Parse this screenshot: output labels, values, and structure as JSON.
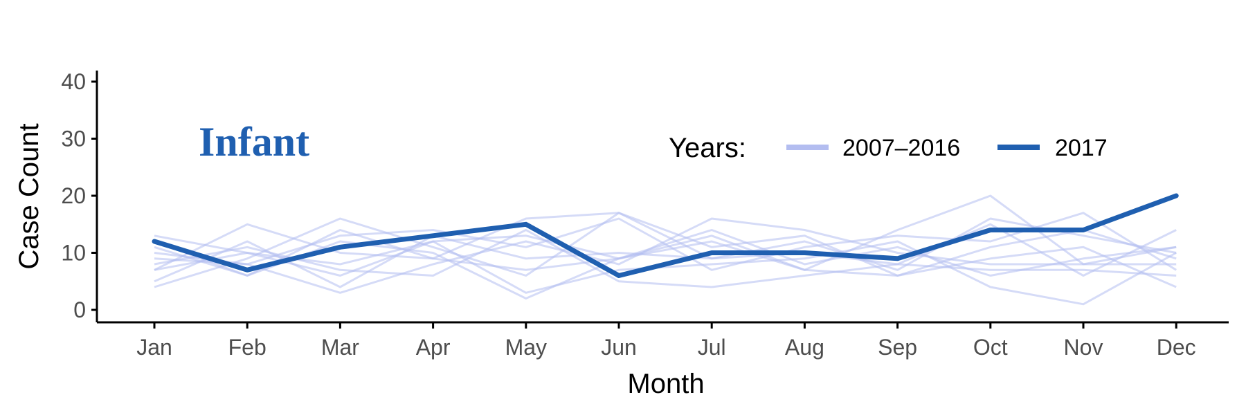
{
  "colors": {
    "history": "#b3bdf0",
    "current": "#1f5fb0",
    "axis": "#000000",
    "tick_text": "#4d4d4d"
  },
  "chart_data": {
    "type": "line",
    "panel_label": "Infant",
    "xlabel": "Month",
    "ylabel": "Case Count",
    "categories": [
      "Jan",
      "Feb",
      "Mar",
      "Apr",
      "May",
      "Jun",
      "Jul",
      "Aug",
      "Sep",
      "Oct",
      "Nov",
      "Dec"
    ],
    "ylim": [
      -2,
      40
    ],
    "yticks": [
      0,
      10,
      20,
      30,
      40
    ],
    "grid": false,
    "legend": {
      "title": "Years:",
      "placement": "top-right-inside",
      "entries": [
        {
          "label": "2007–2016",
          "color": "#b3bdf0"
        },
        {
          "label": "2017",
          "color": "#1f5fb0"
        }
      ]
    },
    "series": [
      {
        "name": "2017",
        "values": [
          12,
          7,
          11,
          13,
          15,
          6,
          10,
          10,
          9,
          14,
          14,
          20
        ]
      }
    ],
    "history_series": [
      {
        "values": [
          13,
          10,
          8,
          12,
          13,
          9,
          13,
          7,
          14,
          20,
          8,
          11
        ]
      },
      {
        "values": [
          4,
          9,
          16,
          11,
          6,
          17,
          11,
          13,
          6,
          11,
          14,
          9
        ]
      },
      {
        "values": [
          7,
          15,
          10,
          9,
          16,
          17,
          9,
          12,
          7,
          16,
          13,
          10
        ]
      },
      {
        "values": [
          10,
          8,
          3,
          8,
          12,
          8,
          16,
          14,
          10,
          8,
          8,
          8
        ]
      },
      {
        "values": [
          8,
          11,
          7,
          6,
          14,
          5,
          4,
          6,
          8,
          15,
          6,
          14
        ]
      },
      {
        "values": [
          11,
          6,
          12,
          10,
          2,
          9,
          14,
          8,
          11,
          6,
          9,
          11
        ]
      },
      {
        "values": [
          9,
          8,
          13,
          14,
          11,
          16,
          7,
          11,
          13,
          12,
          17,
          7
        ]
      },
      {
        "values": [
          7,
          10,
          6,
          12,
          3,
          7,
          8,
          9,
          12,
          4,
          1,
          10
        ]
      },
      {
        "values": [
          12,
          6,
          14,
          9,
          7,
          9,
          12,
          7,
          6,
          9,
          11,
          4
        ]
      },
      {
        "values": [
          5,
          12,
          4,
          13,
          9,
          10,
          9,
          10,
          8,
          7,
          7,
          6
        ]
      }
    ]
  }
}
